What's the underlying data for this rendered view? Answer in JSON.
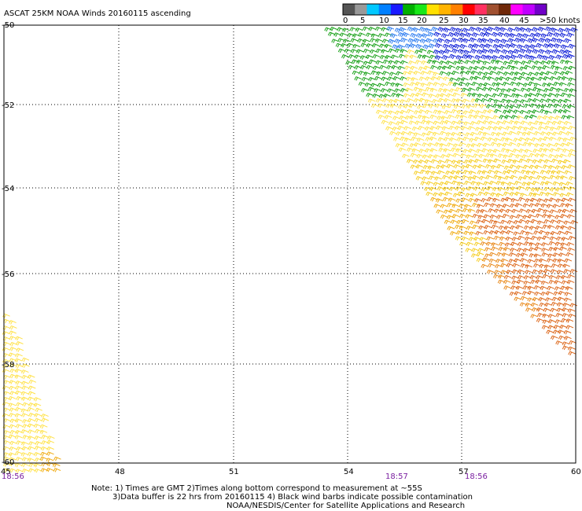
{
  "title": "ASCAT 25KM NOAA Winds 20160115 ascending",
  "legend": {
    "colors": [
      "#555555",
      "#999999",
      "#00c8ff",
      "#0080ff",
      "#1a1aff",
      "#00b000",
      "#18e818",
      "#ffe000",
      "#ffb400",
      "#ff8000",
      "#ff0000",
      "#ff3060",
      "#a05030",
      "#702808",
      "#ff00ff",
      "#c000ff",
      "#7000c8"
    ],
    "labels": [
      "0",
      "5",
      "10",
      "15",
      "20",
      "25",
      "30",
      "35",
      "40",
      "45",
      ">50 knots"
    ]
  },
  "axes": {
    "lat_labels": [
      "-50",
      "-52",
      "-54",
      "-56",
      "-58",
      "-60"
    ],
    "lon_labels": [
      "45",
      "48",
      "51",
      "54",
      "57",
      "60"
    ],
    "time_labels": [
      "18:56",
      "18:57",
      "18:56"
    ]
  },
  "notes": {
    "line1": "Note: 1) Times are GMT 2)Times along bottom correspond to measurement at ~55S",
    "line2": "3)Data buffer is 22 hrs from 20160115 4) Black wind barbs indicate possible contamination",
    "line3": "NOAA/NESDIS/Center for Satellite Applications and Research"
  },
  "barb_colors": {
    "light_yellow": "#ffe24a",
    "yellow": "#f5cc1e",
    "gold": "#f0aa10",
    "orange": "#e88818",
    "dark_orange": "#dc6618",
    "green": "#17a017",
    "dark_green": "#0d5a0d",
    "blue": "#1020d8",
    "light_blue": "#2a7af0"
  }
}
